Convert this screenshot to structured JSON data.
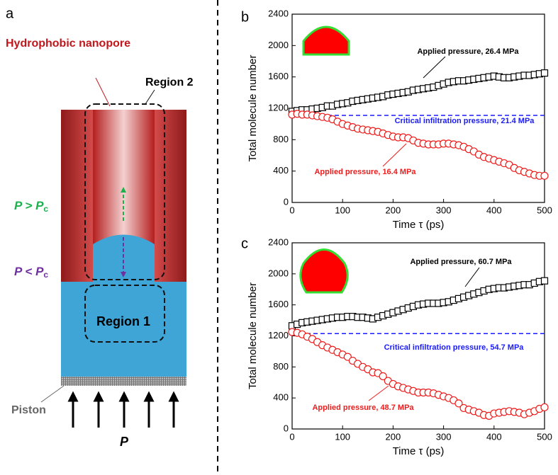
{
  "diagram": {
    "panel": "a",
    "pore_label": "Hydrophobic nanopore",
    "region2": "Region 2",
    "region1": "Region 1",
    "p_above": {
      "text": "P > P",
      "subscript": "c"
    },
    "p_below": {
      "text": "P < P",
      "subscript": "c"
    },
    "piston": "Piston",
    "pressure": "P"
  },
  "chart_data": [
    {
      "type": "scatter",
      "panel": "b",
      "xlabel": "Time τ (ps)",
      "ylabel": "Total molecule number",
      "xlim": [
        0,
        500
      ],
      "xticks": [
        0,
        100,
        200,
        300,
        400,
        500
      ],
      "ylim": [
        0,
        2400
      ],
      "yticks": [
        0,
        400,
        800,
        1200,
        1600,
        2000,
        2400
      ],
      "x": [
        0,
        10,
        20,
        30,
        40,
        50,
        60,
        70,
        80,
        90,
        100,
        110,
        120,
        130,
        140,
        150,
        160,
        170,
        180,
        190,
        200,
        210,
        220,
        230,
        240,
        250,
        260,
        270,
        280,
        290,
        300,
        310,
        320,
        330,
        340,
        350,
        360,
        370,
        380,
        390,
        400,
        410,
        420,
        430,
        440,
        450,
        460,
        470,
        480,
        490,
        500
      ],
      "series": [
        {
          "name": "Applied pressure, 26.4 MPa",
          "color": "#000000",
          "marker": "square",
          "values": [
            1160,
            1170,
            1180,
            1180,
            1190,
            1200,
            1210,
            1230,
            1230,
            1250,
            1260,
            1270,
            1290,
            1300,
            1310,
            1320,
            1330,
            1340,
            1350,
            1370,
            1380,
            1390,
            1400,
            1410,
            1430,
            1440,
            1450,
            1460,
            1470,
            1490,
            1510,
            1530,
            1540,
            1550,
            1550,
            1560,
            1570,
            1580,
            1590,
            1600,
            1610,
            1600,
            1590,
            1590,
            1600,
            1610,
            1620,
            1620,
            1630,
            1640,
            1650
          ]
        },
        {
          "name": "Applied pressure, 16.4 MPa",
          "color": "#ee1c1c",
          "marker": "circle",
          "values": [
            1120,
            1130,
            1120,
            1120,
            1110,
            1100,
            1090,
            1080,
            1060,
            1030,
            1000,
            980,
            960,
            940,
            930,
            920,
            910,
            900,
            880,
            860,
            840,
            830,
            830,
            820,
            790,
            760,
            750,
            740,
            740,
            740,
            750,
            750,
            740,
            730,
            710,
            680,
            650,
            610,
            580,
            560,
            540,
            520,
            500,
            480,
            440,
            410,
            390,
            370,
            350,
            340,
            340
          ]
        }
      ],
      "reference_line": {
        "value": 1110,
        "label": "Critical infiltration pressure, 21.4 MPa",
        "color": "#1a1aff"
      }
    },
    {
      "type": "scatter",
      "panel": "c",
      "xlabel": "Time τ (ps)",
      "ylabel": "Total molecule number",
      "xlim": [
        0,
        500
      ],
      "xticks": [
        0,
        100,
        200,
        300,
        400,
        500
      ],
      "ylim": [
        0,
        2400
      ],
      "yticks": [
        0,
        400,
        800,
        1200,
        1600,
        2000,
        2400
      ],
      "x": [
        0,
        10,
        20,
        30,
        40,
        50,
        60,
        70,
        80,
        90,
        100,
        110,
        120,
        130,
        140,
        150,
        160,
        170,
        180,
        190,
        200,
        210,
        220,
        230,
        240,
        250,
        260,
        270,
        280,
        290,
        300,
        310,
        320,
        330,
        340,
        350,
        360,
        370,
        380,
        390,
        400,
        410,
        420,
        430,
        440,
        450,
        460,
        470,
        480,
        490,
        500
      ],
      "series": [
        {
          "name": "Applied pressure, 60.7 MPa",
          "color": "#000000",
          "marker": "square",
          "values": [
            1330,
            1350,
            1370,
            1380,
            1390,
            1400,
            1410,
            1420,
            1430,
            1440,
            1440,
            1450,
            1450,
            1440,
            1440,
            1430,
            1420,
            1440,
            1460,
            1480,
            1500,
            1520,
            1540,
            1560,
            1580,
            1600,
            1610,
            1620,
            1620,
            1620,
            1630,
            1640,
            1660,
            1680,
            1700,
            1720,
            1740,
            1760,
            1780,
            1800,
            1810,
            1820,
            1820,
            1830,
            1840,
            1850,
            1860,
            1860,
            1880,
            1900,
            1910
          ]
        },
        {
          "name": "Applied pressure, 48.7 MPa",
          "color": "#ee1c1c",
          "marker": "circle",
          "values": [
            1250,
            1240,
            1220,
            1190,
            1160,
            1120,
            1080,
            1050,
            1020,
            990,
            960,
            930,
            880,
            840,
            800,
            770,
            730,
            720,
            680,
            620,
            580,
            550,
            530,
            510,
            490,
            470,
            470,
            470,
            460,
            440,
            420,
            400,
            370,
            330,
            270,
            250,
            230,
            210,
            180,
            170,
            200,
            210,
            220,
            230,
            220,
            210,
            190,
            210,
            230,
            260,
            280
          ]
        }
      ],
      "reference_line": {
        "value": 1230,
        "label": "Critical infiltration pressure, 54.7 MPa",
        "color": "#1a1aff"
      }
    }
  ]
}
